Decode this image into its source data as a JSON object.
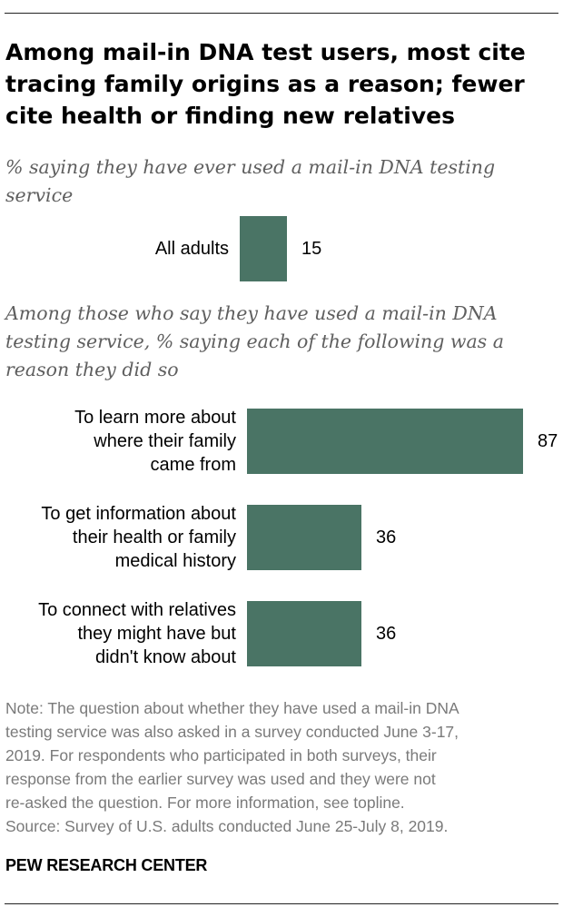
{
  "title_lines": [
    "Among mail-in DNA test users, most cite",
    "tracing family origins as a reason; fewer",
    "cite health or finding new relatives"
  ],
  "subtitle1_lines": [
    "% saying they have ever used a mail-in DNA testing",
    "service"
  ],
  "subtitle2_lines": [
    "Among those who say they have used a mail-in DNA",
    "testing service, % saying each of the following was a",
    "reason they did so"
  ],
  "chart_data": [
    {
      "type": "bar",
      "orientation": "horizontal",
      "categories": [
        "All adults"
      ],
      "category_lines": [
        [
          "All adults"
        ]
      ],
      "values": [
        15
      ],
      "value_labels": [
        "15"
      ],
      "xlim": [
        0,
        87
      ],
      "color": "#4a7465"
    },
    {
      "type": "bar",
      "orientation": "horizontal",
      "categories": [
        "To learn more about where their family came from",
        "To get information about their health or family medical history",
        "To connect with relatives they might have but didn't know about"
      ],
      "category_lines": [
        [
          "To learn more about",
          "where their family",
          "came from"
        ],
        [
          "To get information about",
          "their health or family",
          "medical history"
        ],
        [
          "To connect with relatives",
          "they might have but",
          "didn't know about"
        ]
      ],
      "values": [
        87,
        36,
        36
      ],
      "value_labels": [
        "87",
        "36",
        "36"
      ],
      "xlim": [
        0,
        87
      ],
      "color": "#4a7465"
    }
  ],
  "note_lines": [
    "Note: The question about whether they have used a mail-in DNA",
    "testing service was also asked in a survey conducted June 3-17,",
    "2019. For respondents who participated in both surveys, their",
    "response from the earlier survey was used and they were not",
    "re-asked the question. For more information, see topline.",
    "Source: Survey of U.S. adults conducted June 25-July 8, 2019."
  ],
  "brand": "PEW RESEARCH CENTER"
}
